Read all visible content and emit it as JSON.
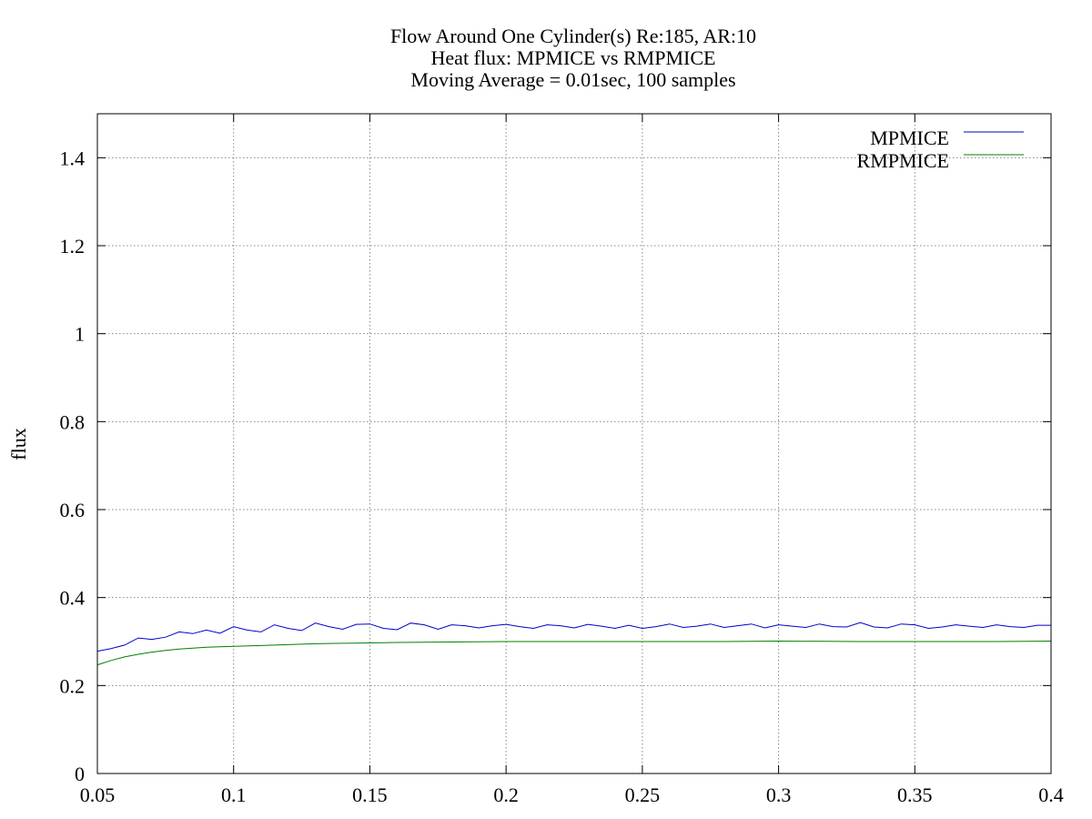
{
  "chart_data": {
    "type": "line",
    "title_lines": [
      "Flow Around One Cylinder(s) Re:185, AR:10",
      "Heat flux: MPMICE vs RMPMICE",
      "Moving Average = 0.01sec, 100 samples"
    ],
    "xlabel": "",
    "ylabel": "flux",
    "xlim": [
      0.05,
      0.4
    ],
    "ylim": [
      0,
      1.5
    ],
    "x_ticks": [
      "0.05",
      "0.1",
      "0.15",
      "0.2",
      "0.25",
      "0.3",
      "0.35",
      "0.4"
    ],
    "y_ticks": [
      "0",
      "0.2",
      "0.4",
      "0.6",
      "0.8",
      "1",
      "1.2",
      "1.4"
    ],
    "grid": true,
    "legend_position": "top-right",
    "series": [
      {
        "name": "MPMICE",
        "color": "#0000cc",
        "x": [
          0.05,
          0.055,
          0.06,
          0.065,
          0.07,
          0.075,
          0.08,
          0.085,
          0.09,
          0.095,
          0.1,
          0.105,
          0.11,
          0.115,
          0.12,
          0.125,
          0.13,
          0.135,
          0.14,
          0.145,
          0.15,
          0.155,
          0.16,
          0.165,
          0.17,
          0.175,
          0.18,
          0.185,
          0.19,
          0.195,
          0.2,
          0.205,
          0.21,
          0.215,
          0.22,
          0.225,
          0.23,
          0.235,
          0.24,
          0.245,
          0.25,
          0.255,
          0.26,
          0.265,
          0.27,
          0.275,
          0.28,
          0.285,
          0.29,
          0.295,
          0.3,
          0.305,
          0.31,
          0.315,
          0.32,
          0.325,
          0.33,
          0.335,
          0.34,
          0.345,
          0.35,
          0.355,
          0.36,
          0.365,
          0.37,
          0.375,
          0.38,
          0.385,
          0.39,
          0.395,
          0.4
        ],
        "y": [
          0.278,
          0.284,
          0.292,
          0.308,
          0.305,
          0.31,
          0.322,
          0.318,
          0.326,
          0.319,
          0.334,
          0.326,
          0.322,
          0.338,
          0.33,
          0.325,
          0.342,
          0.334,
          0.328,
          0.339,
          0.34,
          0.33,
          0.327,
          0.342,
          0.338,
          0.328,
          0.338,
          0.336,
          0.331,
          0.336,
          0.339,
          0.334,
          0.33,
          0.338,
          0.336,
          0.331,
          0.339,
          0.335,
          0.33,
          0.337,
          0.33,
          0.334,
          0.34,
          0.332,
          0.335,
          0.34,
          0.332,
          0.336,
          0.34,
          0.331,
          0.338,
          0.335,
          0.332,
          0.34,
          0.334,
          0.333,
          0.343,
          0.333,
          0.331,
          0.34,
          0.338,
          0.33,
          0.333,
          0.338,
          0.335,
          0.332,
          0.338,
          0.334,
          0.332,
          0.337,
          0.337
        ]
      },
      {
        "name": "RMPMICE",
        "color": "#008000",
        "x": [
          0.05,
          0.055,
          0.06,
          0.065,
          0.07,
          0.075,
          0.08,
          0.085,
          0.09,
          0.095,
          0.1,
          0.11,
          0.12,
          0.13,
          0.14,
          0.15,
          0.16,
          0.18,
          0.2,
          0.22,
          0.25,
          0.28,
          0.3,
          0.33,
          0.35,
          0.38,
          0.4
        ],
        "y": [
          0.247,
          0.257,
          0.265,
          0.271,
          0.276,
          0.28,
          0.283,
          0.285,
          0.287,
          0.288,
          0.289,
          0.291,
          0.293,
          0.295,
          0.296,
          0.297,
          0.298,
          0.299,
          0.3,
          0.3,
          0.3,
          0.3,
          0.301,
          0.3,
          0.3,
          0.3,
          0.301
        ]
      }
    ]
  }
}
